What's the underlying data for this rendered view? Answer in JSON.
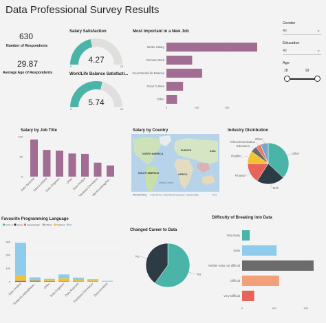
{
  "header": {
    "title": "Data Professional Survey Results"
  },
  "kpis": {
    "respondents": {
      "value": "630",
      "label": "Number of Respondents"
    },
    "avg_age": {
      "value": "29.87",
      "label": "Average Age of Respondents"
    }
  },
  "gauges": {
    "salary": {
      "title": "Salary Satisfaction",
      "value": "4.27",
      "fraction": 0.427,
      "min": "0",
      "max": "10"
    },
    "worklife": {
      "title": "Work/Life Balance Satisfacti...",
      "value": "5.74",
      "fraction": 0.574,
      "min": "0",
      "max": "10"
    }
  },
  "slicers": {
    "gender": {
      "label": "Gender",
      "value": "All"
    },
    "education": {
      "label": "Education",
      "value": "All"
    },
    "age": {
      "label": "Age",
      "min": "18",
      "max": "92"
    }
  },
  "map": {
    "title": "Salary by Country",
    "labels": [
      "NORTH AMERICA",
      "EUROPE",
      "ASIA",
      "SOUTH AMERICA",
      "AFRICA",
      "Atlantic Ocean"
    ],
    "attribution": "© 2023 TomTom, © 2023 Microsoft Corporation, © OpenStreetMap",
    "terms": "Terms",
    "logo": "Microsoft Bing"
  },
  "chart_data": [
    {
      "id": "important",
      "type": "bar",
      "orientation": "horizontal",
      "title": "Most Important in a New Job",
      "categories": [
        "Better Salary",
        "Remote Work",
        "Good Work/Life Balance",
        "Good Culture",
        "Other"
      ],
      "values": [
        300,
        85,
        118,
        55,
        35
      ],
      "xticks": [
        "0",
        "100",
        "200"
      ],
      "xlim": [
        0,
        300
      ],
      "color": "#a16d92"
    },
    {
      "id": "jobtitle",
      "type": "bar",
      "title": "Salary by Job Title",
      "categories": [
        "Data Scientist",
        "Data Architect",
        "Data Engineer",
        "Other",
        "Data Analyst",
        "Database Developer",
        "Student/Looking/No..."
      ],
      "values": [
        93,
        67,
        65,
        58,
        57,
        35,
        28
      ],
      "yticks": [
        "0",
        "50",
        "100"
      ],
      "ylim": [
        0,
        100
      ],
      "color": "#a16d92"
    },
    {
      "id": "industry",
      "type": "pie",
      "title": "Industry Distribution",
      "slices": [
        {
          "label": "Other",
          "value": 37,
          "color": "#4bb4a8"
        },
        {
          "label": "Tech",
          "value": 22,
          "color": "#2d3c44"
        },
        {
          "label": "Finance",
          "value": 16,
          "color": "#e8645a"
        },
        {
          "label": "Healthc...",
          "value": 10,
          "color": "#f2c232"
        },
        {
          "label": "Education",
          "value": 5,
          "color": "#6b6b6b"
        },
        {
          "label": "Telecommunication",
          "value": 4,
          "color": "#e87b6e"
        },
        {
          "label": "Other",
          "value": 6,
          "color": "#7aa6c9"
        }
      ]
    },
    {
      "id": "language",
      "type": "bar",
      "stacked": true,
      "title": "Favourite Programming Language",
      "legend": [
        "C/C++",
        "Java",
        "JavaScript",
        "Other",
        "Python",
        "R"
      ],
      "colors": [
        "#4bb4a8",
        "#2d3c44",
        "#e8645a",
        "#a0a0a0",
        "#f2c232",
        "#8fcbea"
      ],
      "categories": [
        "Data Analyst",
        "Student/Looking/Now...",
        "Other",
        "Data Engineer",
        "Data Scientist",
        "Database Developer",
        "Data Architect"
      ],
      "series": [
        {
          "name": "C/C++",
          "values": [
            2,
            1,
            1,
            1,
            1,
            1,
            0
          ]
        },
        {
          "name": "Java",
          "values": [
            3,
            2,
            2,
            1,
            1,
            1,
            0
          ]
        },
        {
          "name": "JavaScript",
          "values": [
            2,
            1,
            1,
            1,
            0,
            1,
            0
          ]
        },
        {
          "name": "Other",
          "values": [
            2,
            6,
            2,
            2,
            1,
            1,
            1
          ]
        },
        {
          "name": "Python",
          "values": [
            38,
            8,
            8,
            20,
            10,
            8,
            3
          ]
        },
        {
          "name": "R",
          "values": [
            245,
            15,
            8,
            30,
            18,
            8,
            3
          ]
        }
      ],
      "yticks": [
        "0",
        "100",
        "200",
        "300"
      ],
      "ylim": [
        0,
        340
      ]
    },
    {
      "id": "career",
      "type": "pie",
      "title": "Changed Career to Data",
      "slices": [
        {
          "label": "Yes",
          "value": 60,
          "color": "#4bb4a8"
        },
        {
          "label": "No",
          "value": 40,
          "color": "#2d3c44"
        }
      ]
    },
    {
      "id": "difficulty",
      "type": "bar",
      "orientation": "horizontal",
      "title": "Difficulty of Breaking Into Data",
      "categories": [
        "Very Easy",
        "Easy",
        "Neither easy nor difficult",
        "Difficult",
        "Very Difficult"
      ],
      "values": [
        24,
        108,
        224,
        116,
        38
      ],
      "colors": [
        "#4bb4a8",
        "#8fcbea",
        "#6b6b6b",
        "#f2a07a",
        "#e8645a"
      ],
      "xticks": [
        "0",
        "100",
        "200"
      ],
      "xlim": [
        0,
        224
      ]
    }
  ]
}
